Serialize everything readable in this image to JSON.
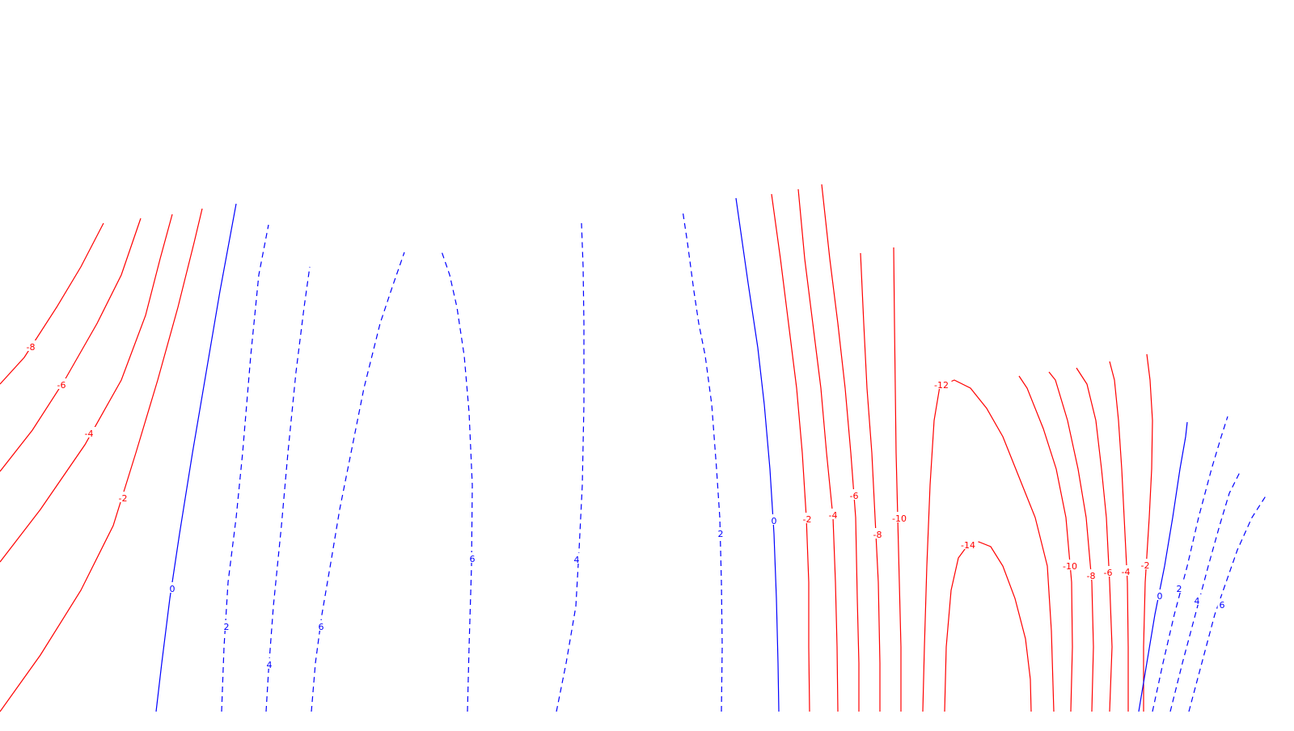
{
  "chart_data": {
    "type": "contour",
    "title": "",
    "xlabel": "",
    "ylabel": "",
    "grid": false,
    "legend": "none",
    "colors": {
      "negative": "#ff0000",
      "positive": "#0000ff",
      "background": "#ffffff"
    },
    "line_styles": {
      "negative": "solid",
      "positive": "dashed"
    },
    "contour_levels": [
      -14,
      -12,
      -10,
      -8,
      -6,
      -4,
      -2,
      0,
      2,
      4,
      6
    ],
    "contour_labels": [
      "-8",
      "-6",
      "-4",
      "-2",
      "0",
      "2",
      "4",
      "6",
      "6",
      "4",
      "2",
      "0",
      "-2",
      "-4",
      "-6",
      "-8",
      "-10",
      "-12",
      "-14",
      "-10",
      "-8",
      "-6",
      "-4",
      "-2",
      "0",
      "2",
      "4",
      "6"
    ]
  }
}
